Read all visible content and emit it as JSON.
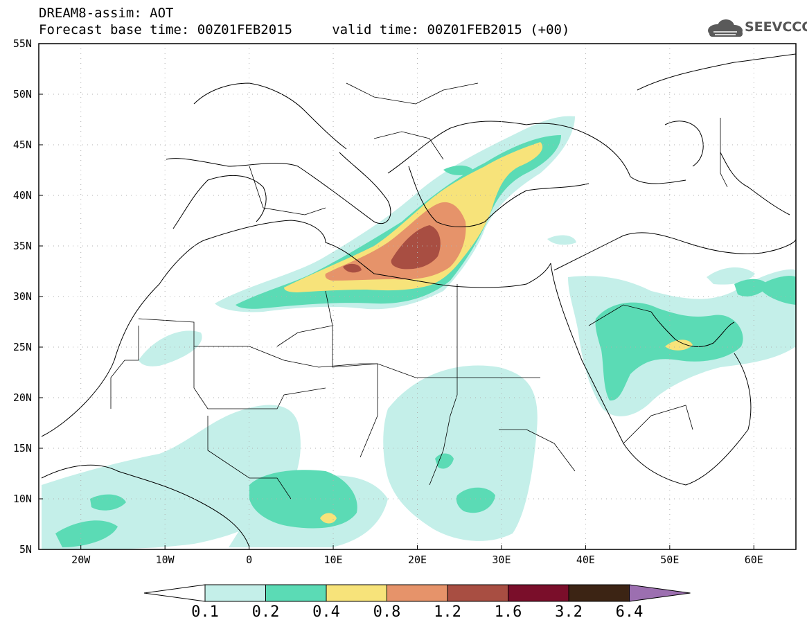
{
  "header": {
    "title_line1": "DREAM8-assim: AOT",
    "title_line2": "Forecast base time: 00Z01FEB2015     valid time: 00Z01FEB2015 (+00)",
    "logo_text": "SEEVCCC",
    "logo_icon": "cloud-icon"
  },
  "map": {
    "projection": "lat-lon",
    "lon_range": [
      -25,
      65
    ],
    "lat_range": [
      5,
      55
    ],
    "grid": "dotted",
    "lat_labels": [
      "55N",
      "50N",
      "45N",
      "40N",
      "35N",
      "30N",
      "25N",
      "20N",
      "15N",
      "10N",
      "5N"
    ],
    "lon_labels": [
      "20W",
      "10W",
      "0",
      "10E",
      "20E",
      "30E",
      "40E",
      "50E",
      "60E"
    ]
  },
  "colorbar": {
    "labels": [
      "0.1",
      "0.2",
      "0.4",
      "0.8",
      "1.2",
      "1.6",
      "3.2",
      "6.4"
    ],
    "colors": [
      "#c4efe9",
      "#5bdbb5",
      "#f7e37a",
      "#e6936a",
      "#a84e42",
      "#7a0e2a",
      "#3c2414",
      "#9c6fb0"
    ],
    "under_color": "#ffffff"
  }
}
